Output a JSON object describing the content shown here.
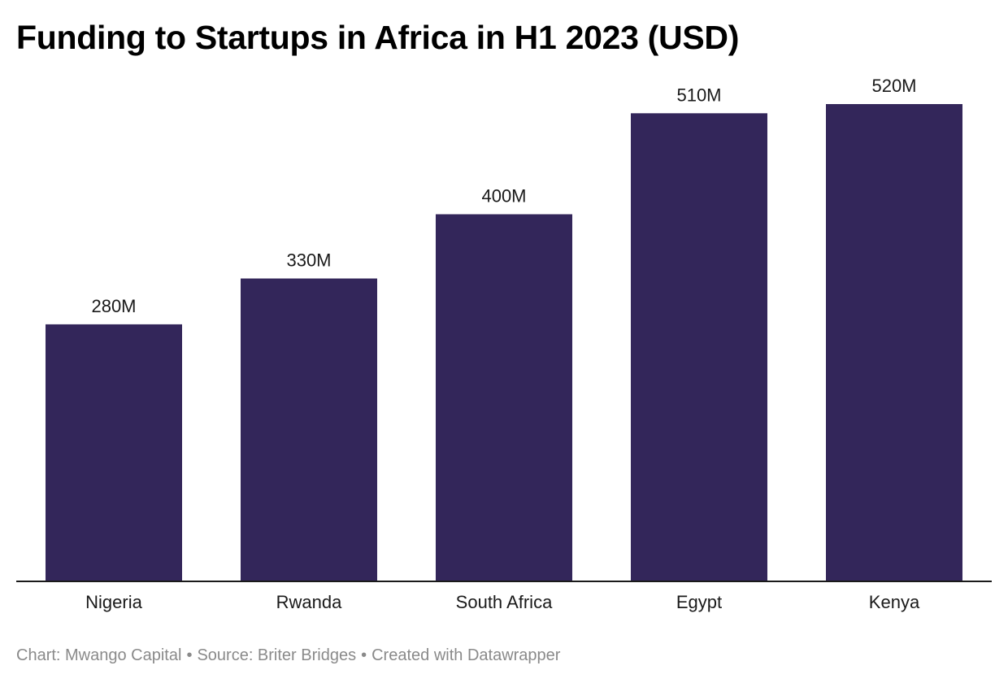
{
  "title": "Funding to Startups in Africa in H1 2023 (USD)",
  "footer": {
    "chart_credit": "Chart: Mwango Capital",
    "source": "Source: Briter Bridges",
    "created_with": "Created with Datawrapper",
    "separator": "•"
  },
  "colors": {
    "bar": "#33265a",
    "axis": "#1a1a1a",
    "label": "#1a1a1a",
    "footer": "#8a8a8a"
  },
  "chart_data": {
    "type": "bar",
    "title": "Funding to Startups in Africa in H1 2023 (USD)",
    "categories": [
      "Nigeria",
      "Rwanda",
      "South Africa",
      "Egypt",
      "Kenya"
    ],
    "values": [
      280,
      330,
      400,
      510,
      520
    ],
    "value_labels": [
      "280M",
      "330M",
      "400M",
      "510M",
      "520M"
    ],
    "unit": "M",
    "xlabel": "",
    "ylabel": "",
    "ylim": [
      0,
      520
    ],
    "grid": false,
    "legend": "none"
  }
}
